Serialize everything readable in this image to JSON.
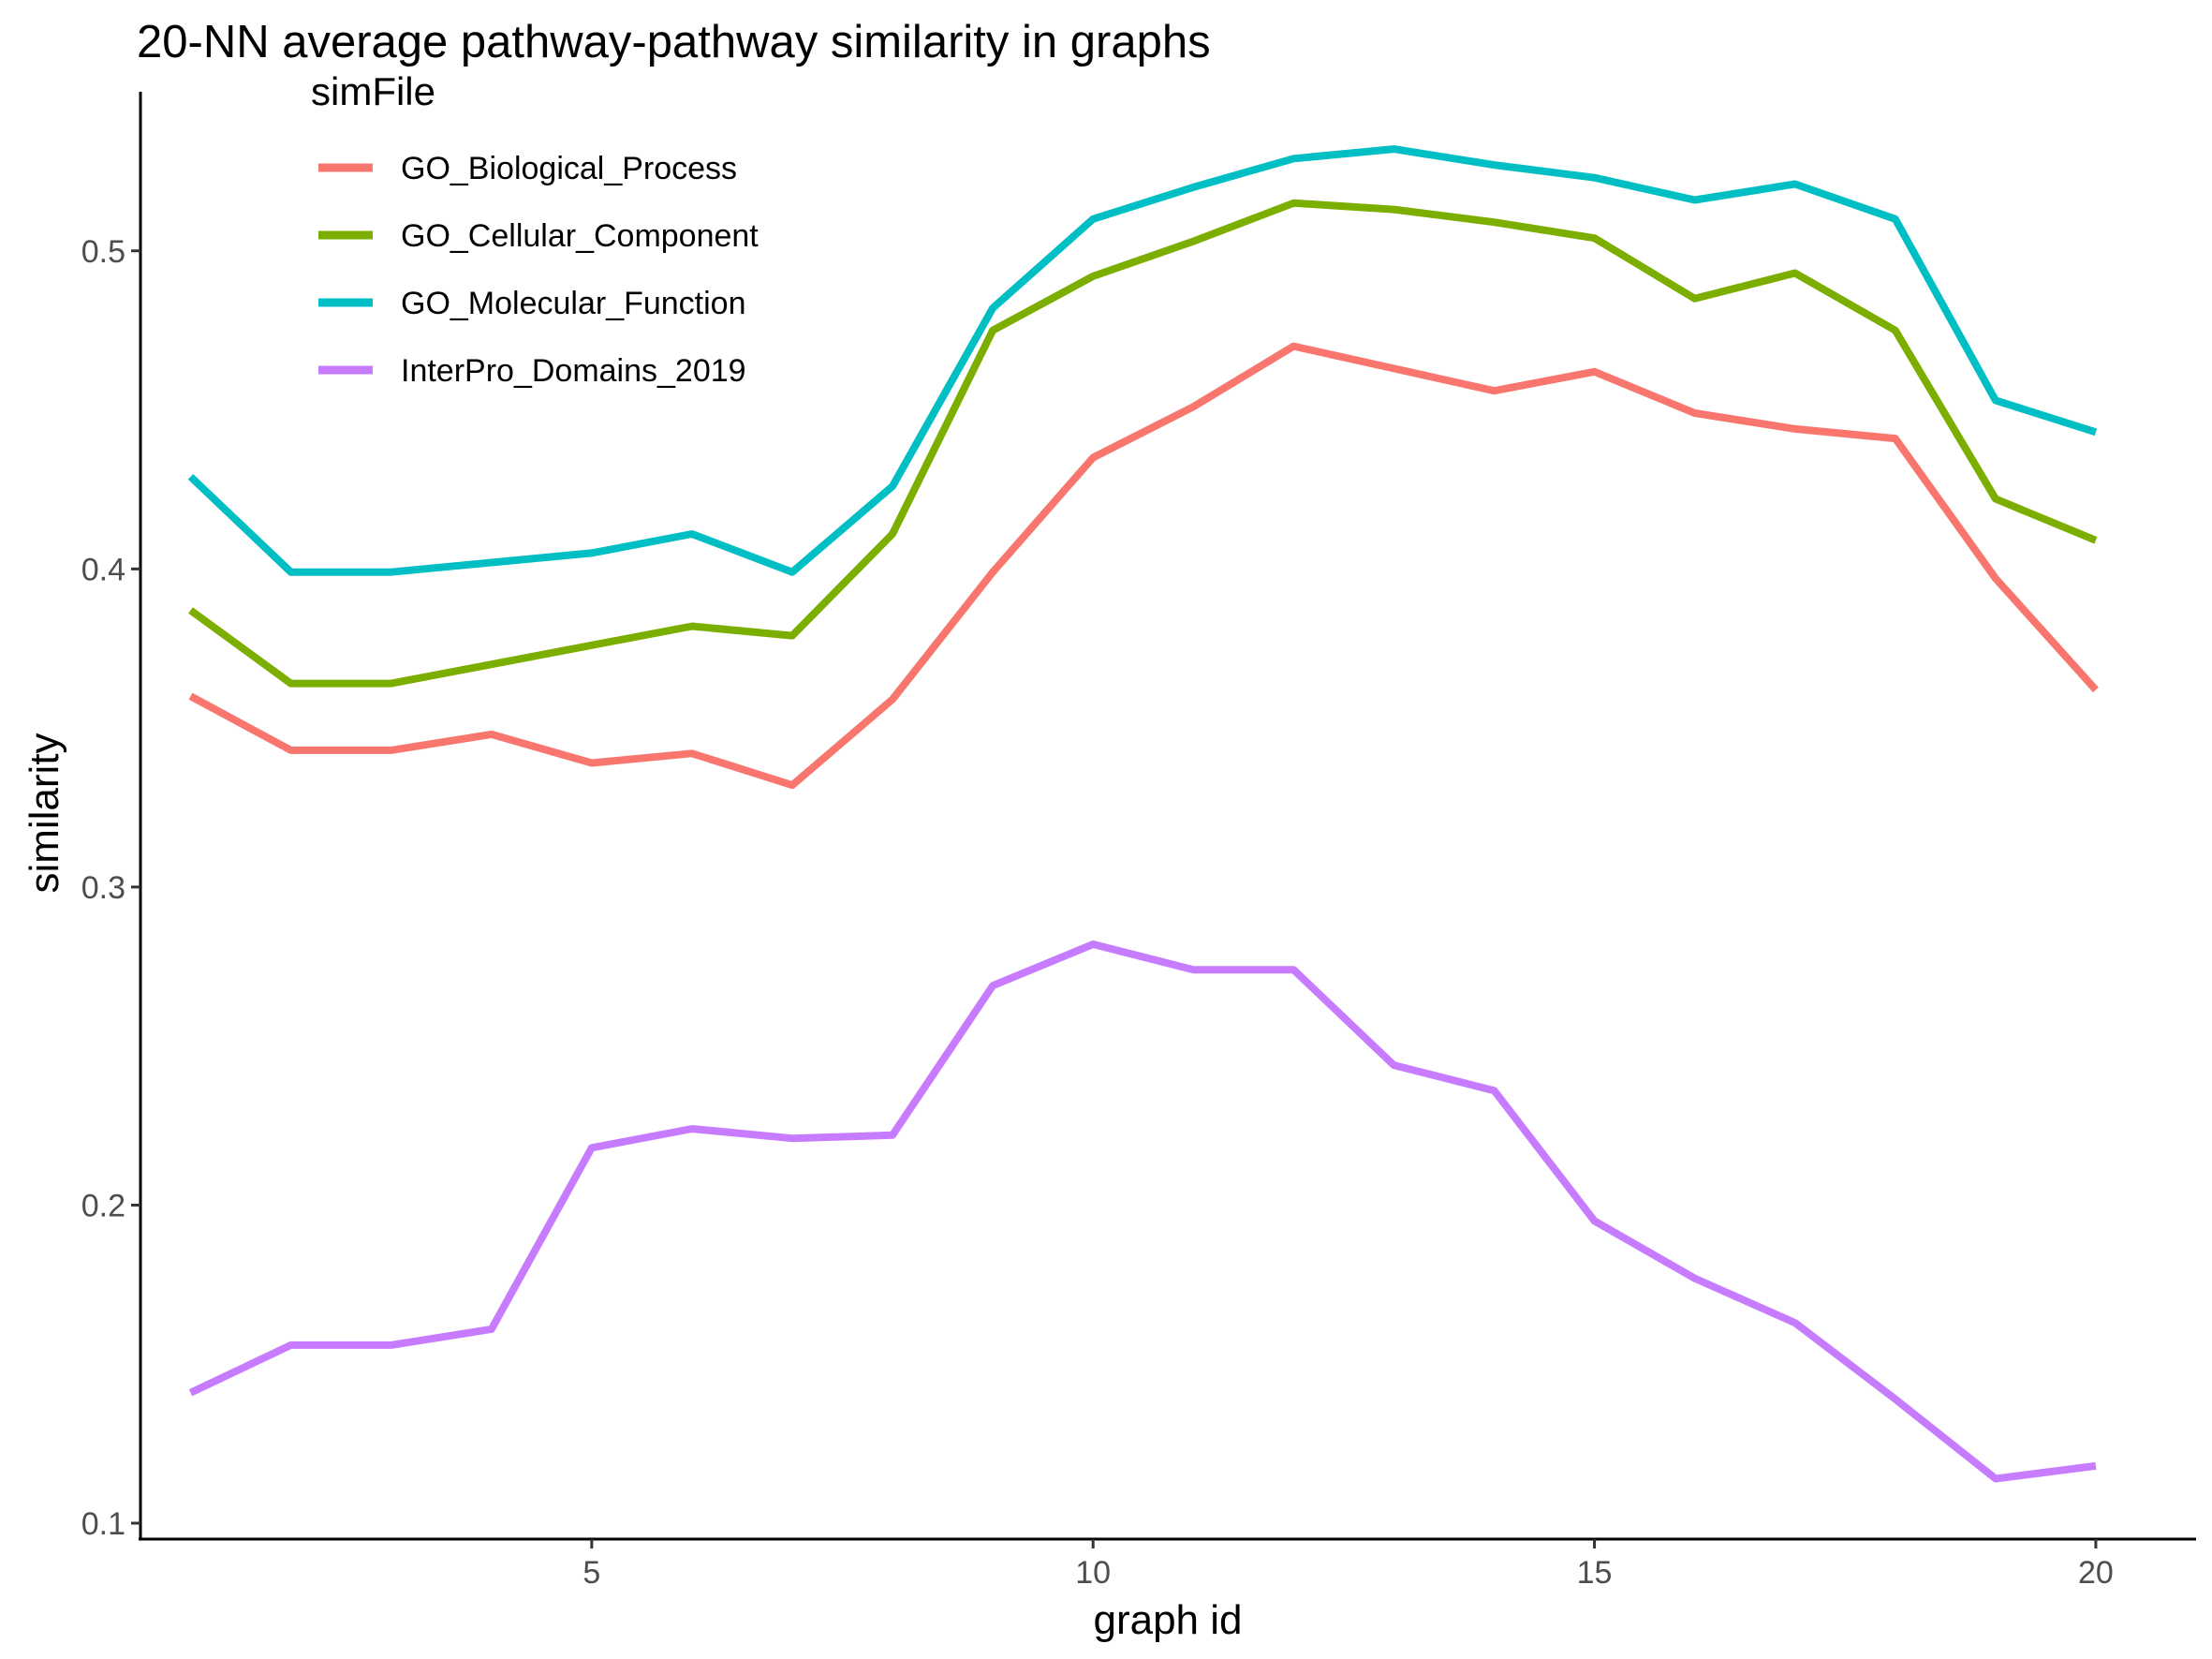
{
  "chart_data": {
    "type": "line",
    "title": "20-NN average pathway-pathway similarity in graphs",
    "xlabel": "graph id",
    "ylabel": "similarity",
    "x": [
      1,
      2,
      3,
      4,
      5,
      6,
      7,
      8,
      9,
      10,
      11,
      12,
      13,
      14,
      15,
      16,
      17,
      18,
      19,
      20
    ],
    "xlim": [
      0.5,
      21.0
    ],
    "ylim": [
      0.095,
      0.55
    ],
    "xticks": [
      5,
      10,
      15,
      20
    ],
    "yticks": [
      0.1,
      0.2,
      0.3,
      0.4,
      0.5
    ],
    "xtick_labels": [
      "5",
      "10",
      "15",
      "20"
    ],
    "ytick_labels": [
      "0.1",
      "0.2",
      "0.3",
      "0.4",
      "0.5"
    ],
    "grid": false,
    "legend": {
      "title": "simFile",
      "placement": "top-left"
    },
    "series": [
      {
        "name": "GO_Biological_Process",
        "color": "#F8766D",
        "values": [
          0.36,
          0.343,
          0.343,
          0.348,
          0.339,
          0.342,
          0.332,
          0.359,
          0.399,
          0.435,
          0.451,
          0.47,
          0.463,
          0.456,
          0.462,
          0.449,
          0.444,
          0.441,
          0.397,
          0.362
        ]
      },
      {
        "name": "GO_Cellular_Component",
        "color": "#7CAE00",
        "values": [
          0.387,
          0.364,
          0.364,
          0.37,
          0.376,
          0.382,
          0.379,
          0.411,
          0.475,
          0.492,
          0.503,
          0.515,
          0.513,
          0.509,
          0.504,
          0.485,
          0.493,
          0.475,
          0.422,
          0.409
        ]
      },
      {
        "name": "GO_Molecular_Function",
        "color": "#00BFC4",
        "values": [
          0.429,
          0.399,
          0.399,
          0.402,
          0.405,
          0.411,
          0.399,
          0.426,
          0.482,
          0.51,
          0.52,
          0.529,
          0.532,
          0.527,
          0.523,
          0.516,
          0.521,
          0.51,
          0.453,
          0.443
        ]
      },
      {
        "name": "InterPro_Domains_2019",
        "color": "#C77CFF",
        "values": [
          0.141,
          0.156,
          0.156,
          0.161,
          0.218,
          0.224,
          0.221,
          0.222,
          0.269,
          0.282,
          0.274,
          0.274,
          0.244,
          0.236,
          0.195,
          0.177,
          0.163,
          0.139,
          0.114,
          0.118
        ]
      }
    ]
  }
}
